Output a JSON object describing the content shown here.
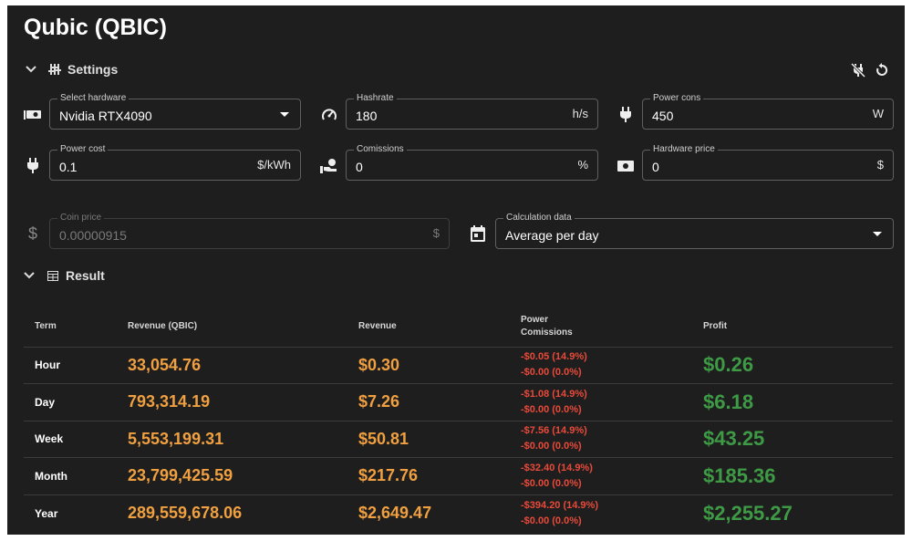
{
  "title": "Qubic (QBIC)",
  "settings": {
    "label": "Settings"
  },
  "fields": {
    "hardware": {
      "label": "Select hardware",
      "value": "Nvidia RTX4090"
    },
    "hashrate": {
      "label": "Hashrate",
      "value": "180",
      "unit": "h/s"
    },
    "power_cons": {
      "label": "Power cons",
      "value": "450",
      "unit": "W"
    },
    "power_cost": {
      "label": "Power cost",
      "value": "0.1",
      "unit": "$/kWh"
    },
    "comissions": {
      "label": "Comissions",
      "value": "0",
      "unit": "%"
    },
    "hardware_price": {
      "label": "Hardware price",
      "value": "0",
      "unit": "$"
    },
    "coin_price": {
      "label": "Coin price",
      "value": "0.00000915",
      "unit": "$"
    },
    "calc_data": {
      "label": "Calculation data",
      "value": "Average per day"
    }
  },
  "result": {
    "label": "Result",
    "headers": {
      "term": "Term",
      "revenue_coin": "Revenue (QBIC)",
      "revenue": "Revenue",
      "power": "Power",
      "comissions": "Comissions",
      "profit": "Profit"
    },
    "rows": [
      {
        "term": "Hour",
        "revenue_coin": "33,054.76",
        "revenue": "$0.30",
        "power": "-$0.05 (14.9%)",
        "comissions": "-$0.00 (0.0%)",
        "profit": "$0.26"
      },
      {
        "term": "Day",
        "revenue_coin": "793,314.19",
        "revenue": "$7.26",
        "power": "-$1.08 (14.9%)",
        "comissions": "-$0.00 (0.0%)",
        "profit": "$6.18"
      },
      {
        "term": "Week",
        "revenue_coin": "5,553,199.31",
        "revenue": "$50.81",
        "power": "-$7.56 (14.9%)",
        "comissions": "-$0.00 (0.0%)",
        "profit": "$43.25"
      },
      {
        "term": "Month",
        "revenue_coin": "23,799,425.59",
        "revenue": "$217.76",
        "power": "-$32.40 (14.9%)",
        "comissions": "-$0.00 (0.0%)",
        "profit": "$185.36"
      },
      {
        "term": "Year",
        "revenue_coin": "289,559,678.06",
        "revenue": "$2,649.47",
        "power": "-$394.20 (14.9%)",
        "comissions": "-$0.00 (0.0%)",
        "profit": "$2,255.27"
      }
    ]
  },
  "colors": {
    "background": "#1e1e1e",
    "revenue": "#f0a040",
    "cost": "#e84a3a",
    "profit": "#3e9a45"
  }
}
